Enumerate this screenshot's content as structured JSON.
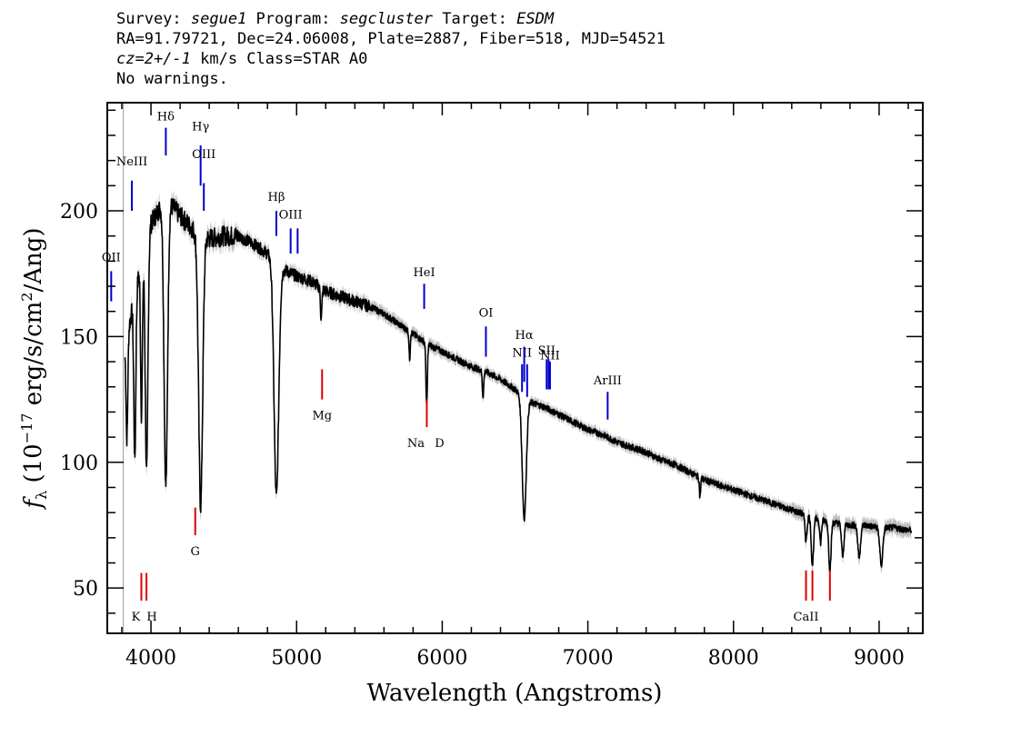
{
  "header": {
    "line1_a": "Survey: ",
    "survey": "segue1",
    "line1_b": " Program: ",
    "program": "segcluster",
    "line1_c": " Target: ",
    "target": "ESDM",
    "line2": "RA=91.79721, Dec=24.06008, Plate=2887, Fiber=518, MJD=54521",
    "line3_cz": "cz=2+/-1",
    "line3_rest": " km/s Class=STAR A0",
    "line4": "No warnings."
  },
  "colors": {
    "emission": "#0000cc",
    "absorption": "#dd0000",
    "spectrum": "#000000",
    "error": "#bbbbbb"
  },
  "chart_data": {
    "type": "line",
    "xlabel": "Wavelength (Angstroms)",
    "ylabel": "f_λ (10^-17 erg/s/cm^2/Ang)",
    "xlim": [
      3700,
      9300
    ],
    "ylim": [
      32,
      243
    ],
    "xticks": [
      4000,
      5000,
      6000,
      7000,
      8000,
      9000
    ],
    "yticks": [
      50,
      100,
      150,
      200
    ],
    "xtick_labels": [
      "4000",
      "5000",
      "6000",
      "7000",
      "8000",
      "9000"
    ],
    "ytick_labels": [
      "50",
      "100",
      "150",
      "200"
    ],
    "grid": false,
    "continuum": [
      [
        3820,
        145
      ],
      [
        3900,
        170
      ],
      [
        4000,
        195
      ],
      [
        4100,
        205
      ],
      [
        4200,
        198
      ],
      [
        4300,
        192
      ],
      [
        4400,
        189
      ],
      [
        4500,
        190
      ],
      [
        4600,
        190
      ],
      [
        4700,
        187
      ],
      [
        4800,
        183
      ],
      [
        4900,
        177
      ],
      [
        5000,
        174
      ],
      [
        5100,
        172
      ],
      [
        5200,
        168
      ],
      [
        5300,
        166
      ],
      [
        5400,
        164
      ],
      [
        5500,
        162
      ],
      [
        5600,
        159
      ],
      [
        5700,
        155
      ],
      [
        5800,
        151
      ],
      [
        5900,
        147
      ],
      [
        6000,
        144
      ],
      [
        6100,
        141
      ],
      [
        6200,
        138
      ],
      [
        6300,
        136
      ],
      [
        6400,
        133
      ],
      [
        6500,
        129
      ],
      [
        6600,
        124
      ],
      [
        6700,
        122
      ],
      [
        6800,
        119
      ],
      [
        6900,
        116
      ],
      [
        7000,
        113
      ],
      [
        7100,
        111
      ],
      [
        7200,
        108
      ],
      [
        7300,
        106
      ],
      [
        7400,
        104
      ],
      [
        7500,
        101
      ],
      [
        7600,
        99
      ],
      [
        7700,
        96
      ],
      [
        7800,
        93
      ],
      [
        7900,
        91
      ],
      [
        8000,
        89
      ],
      [
        8100,
        87
      ],
      [
        8200,
        85
      ],
      [
        8300,
        83
      ],
      [
        8400,
        81
      ],
      [
        8500,
        79
      ],
      [
        8600,
        77
      ],
      [
        8700,
        76
      ],
      [
        8800,
        75
      ],
      [
        8900,
        75
      ],
      [
        9000,
        74
      ],
      [
        9100,
        74
      ],
      [
        9200,
        73
      ]
    ],
    "absorption_features": [
      {
        "wave": 3835,
        "depth": 40,
        "width": 6
      },
      {
        "wave": 3889,
        "depth": 65,
        "width": 7
      },
      {
        "wave": 3935,
        "depth": 60,
        "width": 6
      },
      {
        "wave": 3970,
        "depth": 92,
        "width": 9
      },
      {
        "wave": 4102,
        "depth": 114,
        "width": 12
      },
      {
        "wave": 4341,
        "depth": 108,
        "width": 14
      },
      {
        "wave": 4861,
        "depth": 93,
        "width": 16
      },
      {
        "wave": 5169,
        "depth": 12,
        "width": 5
      },
      {
        "wave": 5776,
        "depth": 11,
        "width": 4
      },
      {
        "wave": 5893,
        "depth": 25,
        "width": 5
      },
      {
        "wave": 6280,
        "depth": 10,
        "width": 5
      },
      {
        "wave": 6563,
        "depth": 48,
        "width": 14
      },
      {
        "wave": 7770,
        "depth": 8,
        "width": 4
      },
      {
        "wave": 8498,
        "depth": 10,
        "width": 7
      },
      {
        "wave": 8542,
        "depth": 19,
        "width": 8
      },
      {
        "wave": 8598,
        "depth": 9,
        "width": 6
      },
      {
        "wave": 8662,
        "depth": 19,
        "width": 8
      },
      {
        "wave": 8750,
        "depth": 13,
        "width": 8
      },
      {
        "wave": 8863,
        "depth": 13,
        "width": 9
      },
      {
        "wave": 9015,
        "depth": 15,
        "width": 10
      }
    ],
    "emission_lines": [
      {
        "label": "OII",
        "wave": 3727,
        "bar": [
          164,
          176
        ],
        "label_y": 180
      },
      {
        "label": "NeIII",
        "wave": 3869,
        "bar": [
          200,
          212
        ],
        "label_y": 218
      },
      {
        "label": "Hδ",
        "wave": 4102,
        "bar": [
          222,
          233
        ],
        "label_y": 236
      },
      {
        "label": "Hγ",
        "wave": 4341,
        "bar": [
          210,
          226
        ],
        "label_y": 232
      },
      {
        "label": "OIII",
        "wave": 4363,
        "bar": [
          200,
          211
        ],
        "label_y": 221
      },
      {
        "label": "Hβ",
        "wave": 4861,
        "bar": [
          190,
          200
        ],
        "label_y": 204
      },
      {
        "label": "OIII",
        "wave": 4959,
        "bar": [
          183,
          193
        ],
        "label_y": 197
      },
      {
        "label": "OIII",
        "wave": 5007,
        "bar": [
          183,
          193
        ],
        "label_y": 0
      },
      {
        "label": "HeI",
        "wave": 5876,
        "bar": [
          161,
          171
        ],
        "label_y": 174
      },
      {
        "label": "OI",
        "wave": 6300,
        "bar": [
          142,
          154
        ],
        "label_y": 158
      },
      {
        "label": "NII",
        "wave": 6548,
        "bar": [
          128,
          139
        ],
        "label_y": 142
      },
      {
        "label": "Hα",
        "wave": 6563,
        "bar": [
          132,
          146
        ],
        "label_y": 149
      },
      {
        "label": "NII",
        "wave": 6583,
        "bar": [
          126,
          139
        ],
        "label_y": 0
      },
      {
        "label": "SII",
        "wave": 6717,
        "bar": [
          129,
          141
        ],
        "label_y": 143
      },
      {
        "label": "SII",
        "wave": 6731,
        "bar": [
          129,
          141
        ],
        "label_y": 0
      },
      {
        "label": "NII",
        "wave": 6740,
        "bar": [
          129,
          140
        ],
        "label_y": 141
      },
      {
        "label": "ArIII",
        "wave": 7136,
        "bar": [
          117,
          128
        ],
        "label_y": 131
      }
    ],
    "absorption_lines": [
      {
        "label": "K",
        "wave": 3934,
        "bar": [
          45,
          56
        ],
        "label_y": 37
      },
      {
        "label": "H",
        "wave": 3969,
        "bar": [
          45,
          56
        ],
        "label_y": 37
      },
      {
        "label": "G",
        "wave": 4304,
        "bar": [
          71,
          82
        ],
        "label_y": 63
      },
      {
        "label": "Mg",
        "wave": 5175,
        "bar": [
          125,
          137
        ],
        "label_y": 117
      },
      {
        "label": "Na",
        "wave": 5894,
        "bar": [
          114,
          125
        ],
        "label_y": 106
      },
      {
        "label": "D",
        "wave": 5894,
        "bar": [
          0,
          0
        ],
        "label_y": 106
      },
      {
        "label": "CaII",
        "wave": 8498,
        "bar": [
          45,
          57
        ],
        "label_y": 37
      },
      {
        "label": "CaII",
        "wave": 8542,
        "bar": [
          45,
          57
        ],
        "label_y": 0
      },
      {
        "label": "CaII",
        "wave": 8662,
        "bar": [
          45,
          57
        ],
        "label_y": 0
      }
    ]
  }
}
